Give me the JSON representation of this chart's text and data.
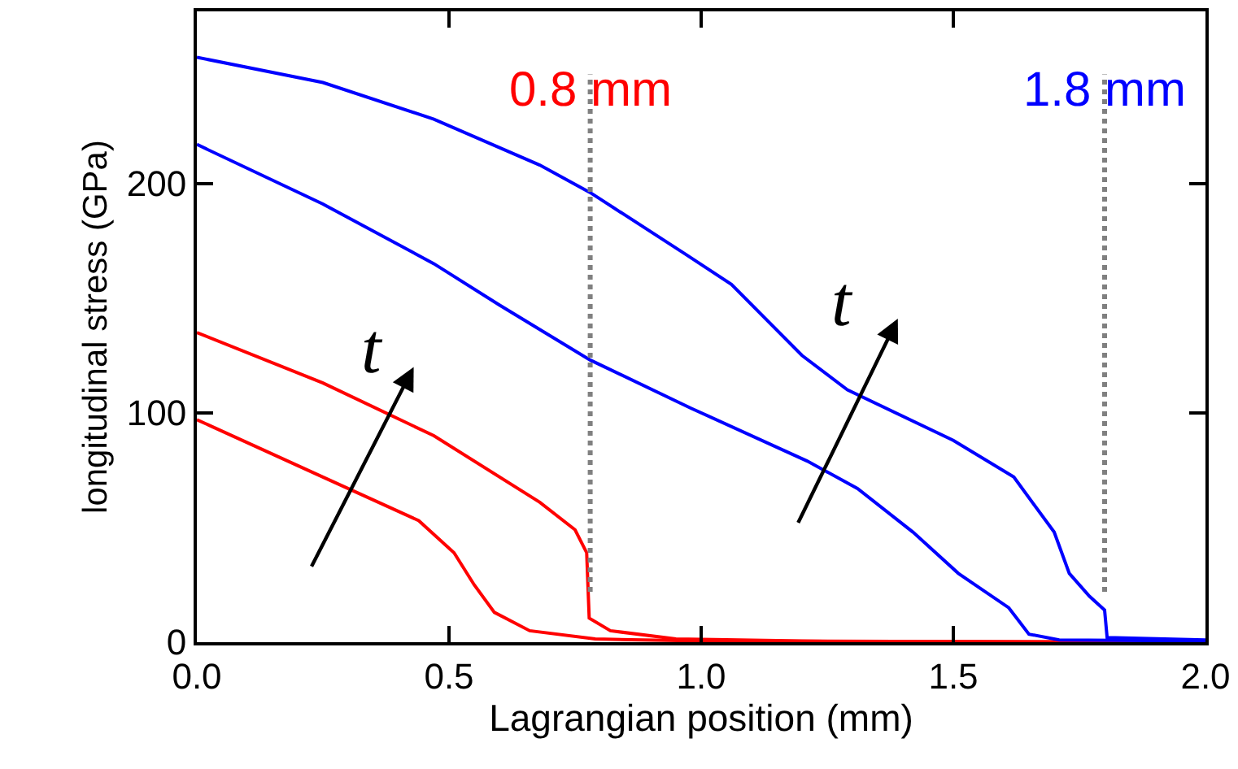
{
  "chart_data": {
    "type": "line",
    "xlabel": "Lagrangian position (mm)",
    "ylabel": "longitudinal stress (GPa)",
    "xlim": [
      0,
      2.0
    ],
    "ylim": [
      0,
      275
    ],
    "xticks": [
      {
        "value": 0,
        "label": "0.0"
      },
      {
        "value": 0.5,
        "label": "0.5"
      },
      {
        "value": 1.0,
        "label": "1.0"
      },
      {
        "value": 1.5,
        "label": "1.5"
      },
      {
        "value": 2.0,
        "label": "2.0"
      }
    ],
    "yticks": [
      0,
      100,
      200
    ],
    "marker": "none",
    "line_style": "solid",
    "series": [
      {
        "color": "#ff0000",
        "x": [
          0,
          0.25,
          0.44,
          0.51,
          0.55,
          0.59,
          0.66,
          0.79,
          1.0,
          2.0
        ],
        "values": [
          97,
          72,
          53,
          39,
          25,
          13,
          5,
          1.4,
          0.5,
          0
        ]
      },
      {
        "color": "#ff0000",
        "x": [
          0,
          0.25,
          0.47,
          0.68,
          0.75,
          0.773,
          0.778,
          0.82,
          0.95,
          1.2,
          2.0
        ],
        "values": [
          135,
          113,
          90,
          61,
          49,
          39,
          10.5,
          5,
          1.4,
          0.5,
          0
        ]
      },
      {
        "color": "#0000ff",
        "x": [
          0,
          0.25,
          0.47,
          0.6,
          0.78,
          0.98,
          1.21,
          1.31,
          1.42,
          1.51,
          1.61,
          1.65,
          1.71,
          2.0
        ],
        "values": [
          217,
          191,
          165,
          147,
          123,
          102,
          79,
          67,
          48,
          30,
          15,
          3.5,
          1,
          0.5
        ]
      },
      {
        "color": "#0000ff",
        "x": [
          0,
          0.25,
          0.47,
          0.68,
          0.78,
          0.97,
          1.06,
          1.2,
          1.29,
          1.5,
          1.62,
          1.7,
          1.73,
          1.77,
          1.8,
          1.805,
          2.0
        ],
        "values": [
          255,
          244,
          228,
          208,
          196,
          169,
          156,
          125,
          110,
          88,
          72,
          48,
          30,
          20,
          14,
          2,
          1
        ]
      }
    ],
    "ref_lines": [
      {
        "axis": "x",
        "value": 0.78,
        "label": "0.8 mm",
        "color": "#808080",
        "line_style": "dotted"
      },
      {
        "axis": "x",
        "value": 1.8,
        "label": "1.8 mm",
        "color": "#808080",
        "line_style": "dotted"
      }
    ],
    "annotations": [
      "t",
      "t"
    ]
  }
}
